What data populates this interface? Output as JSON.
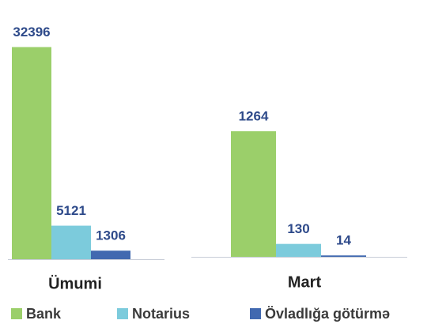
{
  "legend": [
    {
      "name": "Bank",
      "color": "#9bcf6a"
    },
    {
      "name": "Notarius",
      "color": "#7ccbdc"
    },
    {
      "name": "Övladlığa götürmə",
      "color": "#4169b0"
    }
  ],
  "chart_data": [
    {
      "type": "bar",
      "title": "Ümumi",
      "values": [
        32396,
        5121,
        1306
      ],
      "ylim": [
        0,
        35000
      ]
    },
    {
      "type": "bar",
      "title": "Mart",
      "values": [
        1264,
        130,
        14
      ],
      "ylim": [
        0,
        1400
      ]
    }
  ]
}
